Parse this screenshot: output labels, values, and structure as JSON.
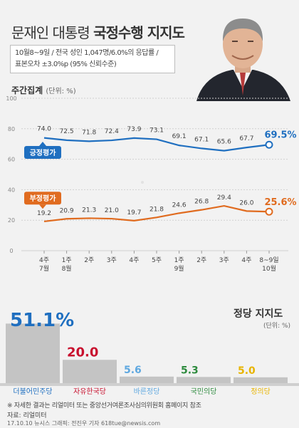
{
  "header": {
    "title_normal": "문재인 대통령",
    "title_bold": "국정수행 지지도",
    "note_line1": "10월8~9일 / 전국 성인 1,047명/6.0%의 응답률 /",
    "note_line2": "표본오차 ±3.0%p (95% 신뢰수준)"
  },
  "weekly": {
    "label": "주간집계",
    "unit": "(단위: %)"
  },
  "chart_data": [
    {
      "type": "line",
      "x": [
        "4주 7월",
        "1주 8월",
        "2주",
        "3주",
        "4주",
        "5주",
        "1주 9월",
        "2주",
        "3주",
        "4주",
        "8~9일 10월"
      ],
      "x_line1": [
        "4주",
        "1주",
        "2주",
        "3주",
        "4주",
        "5주",
        "1주",
        "2주",
        "3주",
        "4주",
        "8~9일"
      ],
      "x_line2": [
        "7월",
        "8월",
        "",
        "",
        "",
        "",
        "9월",
        "",
        "",
        "",
        "10월"
      ],
      "series": [
        {
          "name": "긍정평가",
          "color": "#1f6fc0",
          "values": [
            74.0,
            72.5,
            71.8,
            72.4,
            73.9,
            73.1,
            69.1,
            67.1,
            65.6,
            67.7,
            69.5
          ],
          "labels": [
            "74.0",
            "72.5",
            "71.8",
            "72.4",
            "73.9",
            "73.1",
            "69.1",
            "67.1",
            "65.6",
            "67.7",
            "69.5%"
          ]
        },
        {
          "name": "부정평가",
          "color": "#e06b1f",
          "values": [
            19.2,
            20.9,
            21.3,
            21.0,
            19.7,
            21.8,
            24.6,
            26.8,
            29.4,
            26.0,
            25.6
          ],
          "labels": [
            "19.2",
            "20.9",
            "21.3",
            "21.0",
            "19.7",
            "21.8",
            "24.6",
            "26.8",
            "29.4",
            "26.0",
            "25.6%"
          ]
        }
      ],
      "yticks": [
        "0",
        "20",
        "40",
        "60",
        "80",
        "100"
      ],
      "ylim": [
        0,
        100
      ],
      "grid": true
    },
    {
      "type": "bar",
      "title": "정당 지지도",
      "unit": "(단위: %)",
      "categories": [
        "더불어민주당",
        "자유한국당",
        "바른정당",
        "국민의당",
        "정의당"
      ],
      "values": [
        51.1,
        20.0,
        5.6,
        5.3,
        5.0
      ],
      "labels": [
        "51.1%",
        "20.0",
        "5.6",
        "5.3",
        "5.0"
      ],
      "colors": [
        "#1f6fc0",
        "#c8102e",
        "#5fa8e0",
        "#2e8b3e",
        "#e8b400"
      ]
    }
  ],
  "footer": {
    "footnote": "※ 자세한 결과는 리얼미터 또는 중앙선거여론조사심의위원회 홈페이지 참조",
    "source": "자료: 리얼미터",
    "credit": "17.10.10 뉴시스 그래픽: 전진우 기자 618tue@newsis.com"
  }
}
